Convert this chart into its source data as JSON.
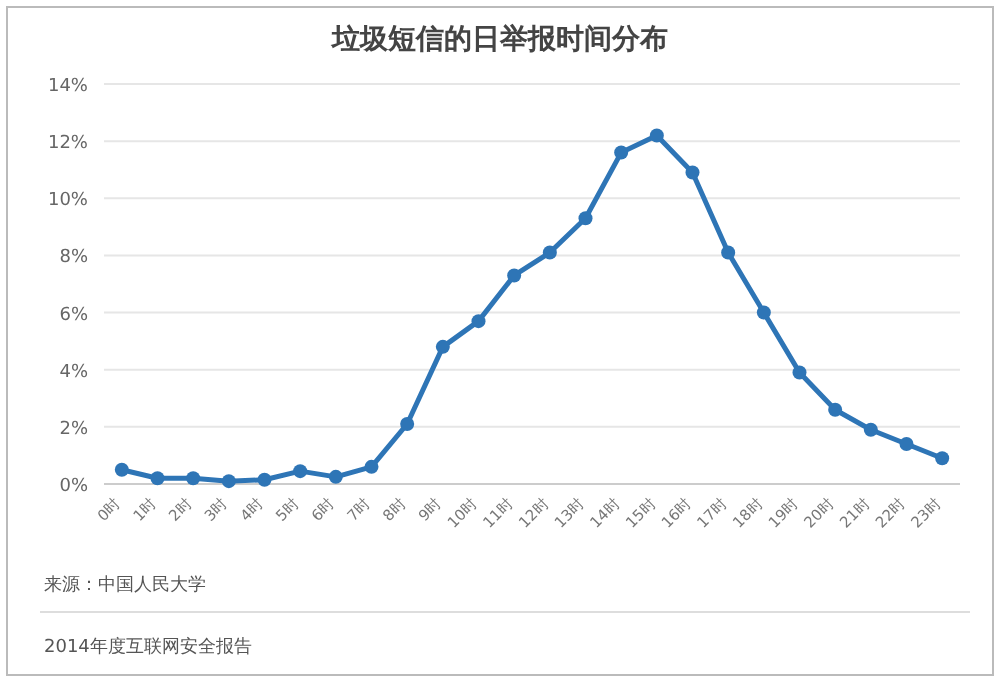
{
  "chart_data": {
    "type": "line",
    "title": "垃圾短信的日举报时间分布",
    "categories": [
      "0时",
      "1时",
      "2时",
      "3时",
      "4时",
      "5时",
      "6时",
      "7时",
      "8时",
      "9时",
      "10时",
      "11时",
      "12时",
      "13时",
      "14时",
      "15时",
      "16时",
      "17时",
      "18时",
      "19时",
      "20时",
      "21时",
      "22时",
      "23时"
    ],
    "series": [
      {
        "color": "#2e75b6",
        "values": [
          0.5,
          0.2,
          0.2,
          0.1,
          0.15,
          0.45,
          0.25,
          0.6,
          2.1,
          4.8,
          5.7,
          7.3,
          8.1,
          9.3,
          11.6,
          12.2,
          10.9,
          8.1,
          6.0,
          3.9,
          2.6,
          1.9,
          1.4,
          0.9
        ]
      }
    ],
    "ylim": [
      0,
      14
    ],
    "yticks": [
      {
        "value": 0,
        "label": "0%"
      },
      {
        "value": 2,
        "label": "2%"
      },
      {
        "value": 4,
        "label": "4%"
      },
      {
        "value": 6,
        "label": "6%"
      },
      {
        "value": 8,
        "label": "8%"
      },
      {
        "value": 10,
        "label": "10%"
      },
      {
        "value": 12,
        "label": "12%"
      },
      {
        "value": 14,
        "label": "14%"
      }
    ],
    "grid": "y",
    "marker": "circle",
    "line_style": "solid",
    "annotations": [
      "来源：中国人民大学",
      "2014年度互联网安全报告"
    ]
  }
}
